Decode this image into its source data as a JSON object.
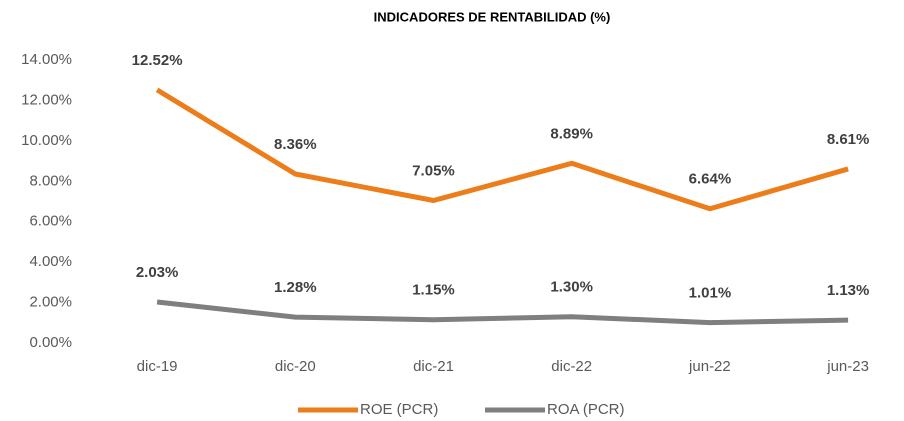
{
  "chart_data": {
    "type": "line",
    "title": "INDICADORES DE RENTABILIDAD (%)",
    "categories": [
      "dic-19",
      "dic-20",
      "dic-21",
      "dic-22",
      "jun-22",
      "jun-23"
    ],
    "series": [
      {
        "name": "ROE (PCR)",
        "color": "#ED7D1A",
        "values": [
          12.52,
          8.36,
          7.05,
          8.89,
          6.64,
          8.61
        ],
        "value_labels": [
          "12.52%",
          "8.36%",
          "7.05%",
          "8.89%",
          "6.64%",
          "8.61%"
        ]
      },
      {
        "name": "ROA (PCR)",
        "color": "#7F7F7F",
        "values": [
          2.03,
          1.28,
          1.15,
          1.3,
          1.01,
          1.13
        ],
        "value_labels": [
          "2.03%",
          "1.28%",
          "1.15%",
          "1.30%",
          "1.01%",
          "1.13%"
        ]
      }
    ],
    "ylim": [
      0,
      14
    ],
    "yticks": [
      {
        "value": 0,
        "label": "0.00%"
      },
      {
        "value": 2,
        "label": "2.00%"
      },
      {
        "value": 4,
        "label": "4.00%"
      },
      {
        "value": 6,
        "label": "6.00%"
      },
      {
        "value": 8,
        "label": "8.00%"
      },
      {
        "value": 10,
        "label": "10.00%"
      },
      {
        "value": 12,
        "label": "12.00%"
      },
      {
        "value": 14,
        "label": "14.00%"
      }
    ],
    "grid": false,
    "legend": "bottom"
  }
}
